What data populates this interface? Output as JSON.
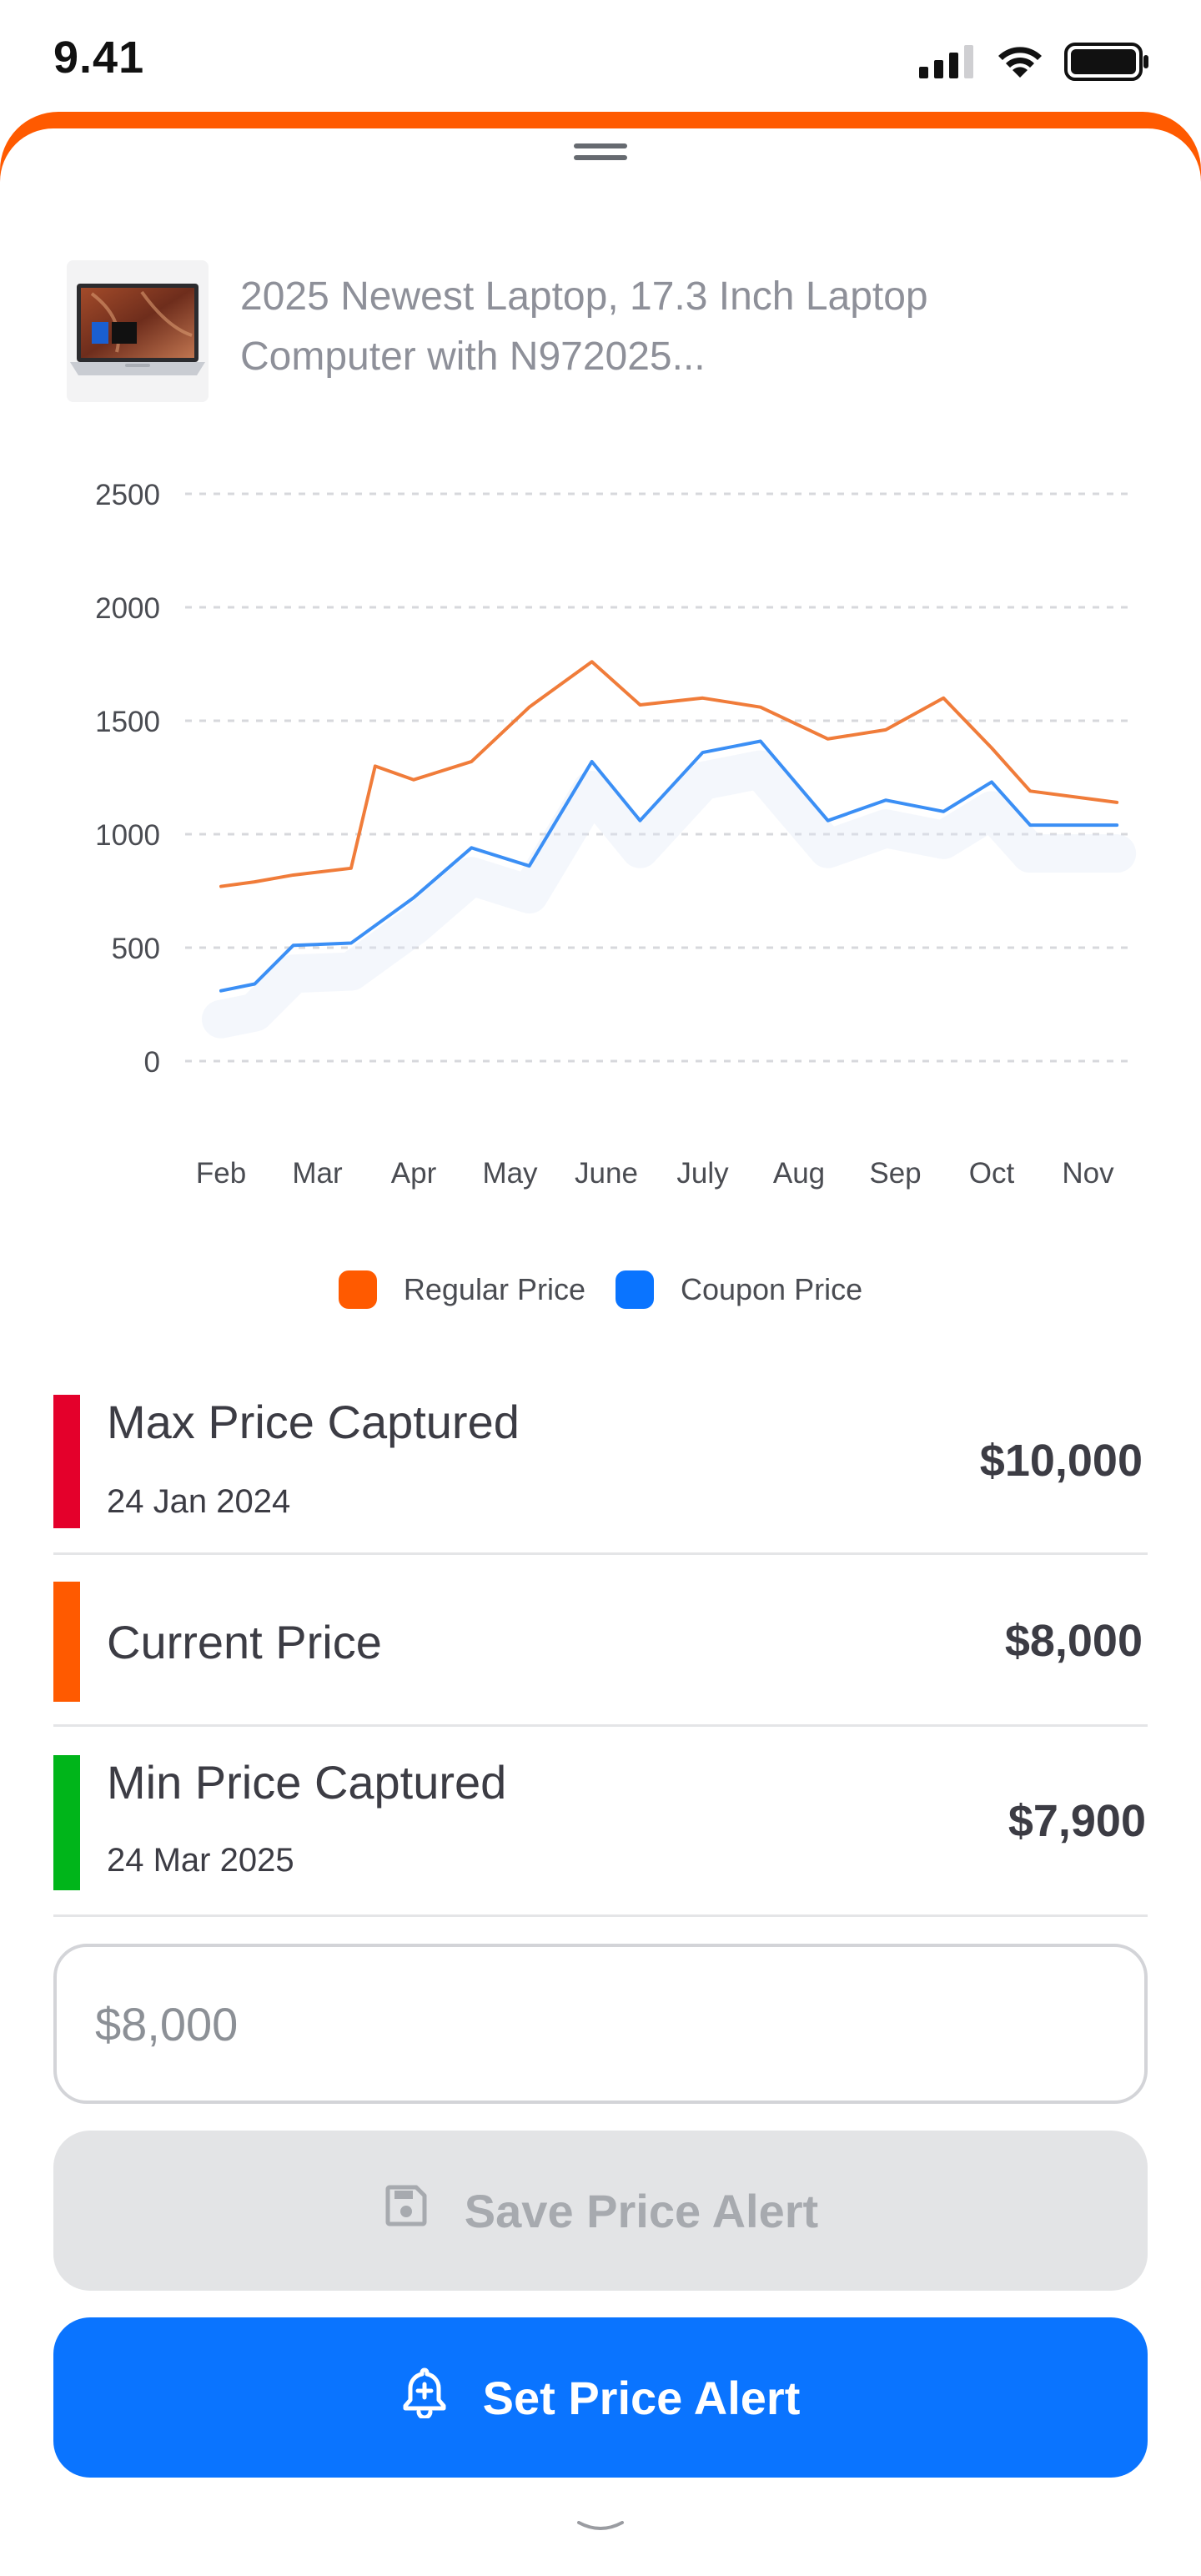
{
  "status_bar": {
    "time": "9.41",
    "icons": [
      "signal-icon",
      "wifi-icon",
      "battery-icon"
    ]
  },
  "product": {
    "title_line1": "2025 Newest Laptop, 17.3 Inch Laptop",
    "title_line2": "Computer with N972025...",
    "thumbnail": "laptop-image"
  },
  "chart_data": {
    "type": "line",
    "x": [
      "Feb",
      "Mar",
      "Apr",
      "May",
      "June",
      "July",
      "Aug",
      "Sep",
      "Oct",
      "Nov"
    ],
    "y_ticks": [
      "2500",
      "2000",
      "1500",
      "1000",
      "500",
      "0"
    ],
    "ylim": [
      0,
      2500
    ],
    "grid": true,
    "legend_position": "bottom",
    "series": [
      {
        "name": "Regular Price",
        "color": "#f07c3a",
        "points": [
          [
            0,
            770
          ],
          [
            0.35,
            790
          ],
          [
            0.75,
            820
          ],
          [
            1.35,
            850
          ],
          [
            1.6,
            1300
          ],
          [
            2.0,
            1240
          ],
          [
            2.6,
            1320
          ],
          [
            3.2,
            1560
          ],
          [
            3.85,
            1760
          ],
          [
            4.35,
            1570
          ],
          [
            5.0,
            1600
          ],
          [
            5.6,
            1560
          ],
          [
            6.3,
            1420
          ],
          [
            6.9,
            1460
          ],
          [
            7.5,
            1600
          ],
          [
            8.0,
            1380
          ],
          [
            8.4,
            1190
          ],
          [
            9.3,
            1140
          ]
        ]
      },
      {
        "name": "Coupon Price",
        "color": "#3b8ff5",
        "points": [
          [
            0,
            310
          ],
          [
            0.35,
            340
          ],
          [
            0.75,
            510
          ],
          [
            1.35,
            520
          ],
          [
            2.0,
            720
          ],
          [
            2.6,
            940
          ],
          [
            3.2,
            860
          ],
          [
            3.85,
            1320
          ],
          [
            4.35,
            1060
          ],
          [
            5.0,
            1360
          ],
          [
            5.6,
            1410
          ],
          [
            6.3,
            1060
          ],
          [
            6.9,
            1150
          ],
          [
            7.5,
            1100
          ],
          [
            8.0,
            1230
          ],
          [
            8.4,
            1040
          ],
          [
            9.3,
            1040
          ]
        ]
      }
    ]
  },
  "legend": {
    "regular_label": "Regular Price",
    "coupon_label": "Coupon Price",
    "regular_color": "#ff5a00",
    "coupon_color": "#0a74ff"
  },
  "prices": {
    "max": {
      "label": "Max Price Captured",
      "date": "24 Jan 2024",
      "value": "$10,000",
      "color": "#e4002b"
    },
    "current": {
      "label": "Current Price",
      "value": "$8,000",
      "color": "#ff5a00"
    },
    "min": {
      "label": "Min Price Captured",
      "date": "24 Mar 2025",
      "value": "$7,900",
      "color": "#00b51a"
    }
  },
  "alert_input": {
    "placeholder": "$8,000"
  },
  "buttons": {
    "save_label": "Save Price Alert",
    "save_icon": "save-icon",
    "set_label": "Set Price Alert",
    "set_icon": "bell-plus-icon"
  },
  "colors": {
    "accent": "#ff5a00",
    "primary": "#0a74ff"
  }
}
